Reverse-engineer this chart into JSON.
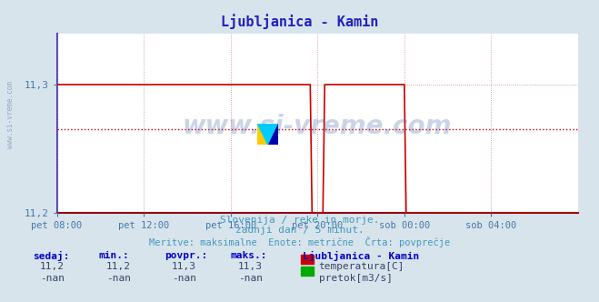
{
  "title": "Ljubljanica - Kamin",
  "background_color": "#d8e4ec",
  "plot_bg_color": "#ffffff",
  "grid_color": "#cc8888",
  "y_min": 11.2,
  "y_max": 11.34,
  "y_ticks": [
    11.2,
    11.3
  ],
  "x_ticks_labels": [
    "pet 08:00",
    "pet 12:00",
    "pet 16:00",
    "pet 20:00",
    "sob 00:00",
    "sob 04:00"
  ],
  "x_ticks_positions": [
    0,
    48,
    96,
    144,
    192,
    240
  ],
  "x_max": 288,
  "temp_color": "#cc0000",
  "pretok_color": "#00aa00",
  "avg_line_color": "#cc0000",
  "avg_value": 11.265,
  "watermark": "www.si-vreme.com",
  "subtitle1": "Slovenija / reke in morje.",
  "subtitle2": "zadnji dan / 5 minut.",
  "subtitle3": "Meritve: maksimalne  Enote: metrične  Črta: povprečje",
  "table_headers": [
    "sedaj:",
    "min.:",
    "povpr.:",
    "maks.:"
  ],
  "temp_row": [
    "11,2",
    "11,2",
    "11,3",
    "11,3"
  ],
  "pretok_row": [
    "-nan",
    "-nan",
    "-nan",
    "-nan"
  ],
  "legend_title": "Ljubljanica - Kamin",
  "legend_temp": "temperatura[C]",
  "legend_pretok": "pretok[m3/s]",
  "title_color": "#2222bb",
  "subtitle_color": "#4499bb",
  "table_header_color": "#0000cc",
  "table_value_color": "#334466",
  "left_spine_color": "#4444bb",
  "bottom_spine_color": "#990000",
  "tick_color": "#4477aa",
  "left_watermark_color": "#5577aa",
  "n_points": 289,
  "drop1_start": 141,
  "drop1_end": 148,
  "rise1_start": 149,
  "rise1_end": 155,
  "drop2_start": 193,
  "drop2_end": 288
}
